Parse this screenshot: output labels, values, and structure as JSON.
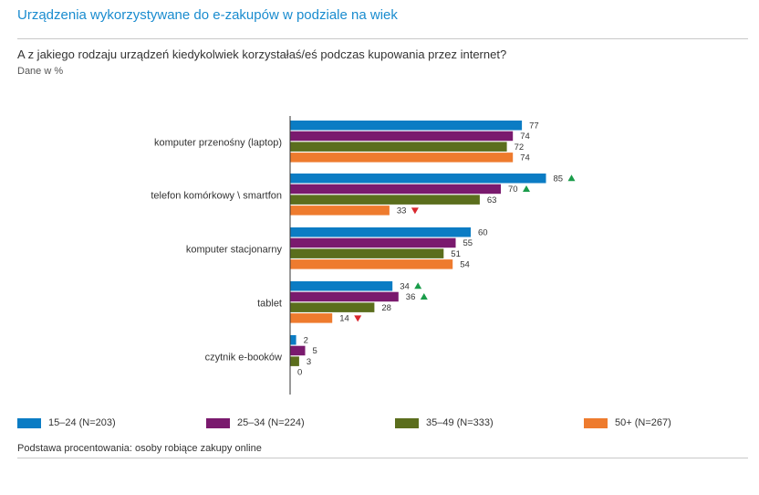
{
  "header": {
    "title": "Urządzenia wykorzystywane do e-zakupów w podziale na wiek",
    "question": "A z jakiego rodzaju urządzeń kiedykolwiek korzystałaś/eś podczas kupowania przez internet?",
    "unit": "Dane w %"
  },
  "footer": {
    "base_note": "Podstawa procentowania: osoby robiące zakupy online"
  },
  "colors": {
    "accent_title": "#1a8ccf",
    "up_marker": "#1a9c4a",
    "down_marker": "#d9272e"
  },
  "chart_data": {
    "type": "bar",
    "orientation": "horizontal",
    "categories": [
      "komputer przenośny (laptop)",
      "telefon komórkowy \\ smartfon",
      "komputer stacjonarny",
      "tablet",
      "czytnik e-booków"
    ],
    "series": [
      {
        "name": "15–24 (N=203)",
        "color": "#0b7cc4",
        "values": [
          77,
          85,
          60,
          34,
          2
        ],
        "markers": [
          "",
          "up",
          "",
          "up",
          ""
        ]
      },
      {
        "name": "25–34 (N=224)",
        "color": "#7a1a6e",
        "values": [
          74,
          70,
          55,
          36,
          5
        ],
        "markers": [
          "",
          "up",
          "",
          "up",
          ""
        ]
      },
      {
        "name": "35–49 (N=333)",
        "color": "#5b6e1d",
        "values": [
          72,
          63,
          51,
          28,
          3
        ],
        "markers": [
          "",
          "",
          "",
          "",
          ""
        ]
      },
      {
        "name": "50+ (N=267)",
        "color": "#ee7b2e",
        "values": [
          74,
          33,
          54,
          14,
          0
        ],
        "markers": [
          "",
          "down",
          "",
          "down",
          ""
        ]
      }
    ],
    "xlim": [
      0,
      100
    ],
    "legend_position": "bottom"
  }
}
